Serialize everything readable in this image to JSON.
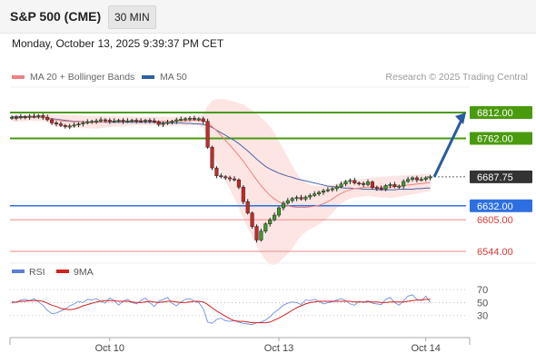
{
  "header": {
    "title": "S&P 500 (CME)",
    "interval": "30 MIN"
  },
  "datetime": "Monday, October 13, 2025 9:39:37 PM CET",
  "legend": {
    "items": [
      {
        "label": "MA 20 + Bollinger Bands",
        "color": "#f08080"
      },
      {
        "label": "MA 50",
        "color": "#2e5fa3"
      }
    ],
    "credit": "Research © 2025 Trading Central"
  },
  "chart_data": {
    "type": "candlestick",
    "price_levels": [
      {
        "value": 6812.0,
        "label": "6812.00",
        "kind": "resistance",
        "color": "#4a9a0e",
        "style": "solid"
      },
      {
        "value": 6762.0,
        "label": "6762.00",
        "kind": "resistance",
        "color": "#4a9a0e",
        "style": "solid"
      },
      {
        "value": 6687.75,
        "label": "6687.75",
        "kind": "last",
        "color": "#333333",
        "style": "dotted"
      },
      {
        "value": 6632.0,
        "label": "6632.00",
        "kind": "support",
        "color": "#2d6fe0",
        "style": "solid"
      },
      {
        "value": 6605.0,
        "label": "6605.00",
        "kind": "support",
        "color": "#dd3b3b",
        "style": "thin"
      },
      {
        "value": 6544.0,
        "label": "6544.00",
        "kind": "support",
        "color": "#dd3b3b",
        "style": "thin"
      }
    ],
    "ylim": [
      6530,
      6840
    ],
    "x_ticks": [
      {
        "label": "Oct 10",
        "bar": 22
      },
      {
        "label": "Oct 13",
        "bar": 60
      },
      {
        "label": "Oct 14",
        "bar": 93
      }
    ],
    "closes": [
      6803,
      6802,
      6804,
      6803,
      6805,
      6804,
      6806,
      6803,
      6798,
      6792,
      6790,
      6787,
      6785,
      6786,
      6788,
      6790,
      6792,
      6794,
      6795,
      6796,
      6798,
      6797,
      6795,
      6796,
      6797,
      6795,
      6796,
      6797,
      6796,
      6795,
      6797,
      6796,
      6794,
      6789,
      6791,
      6793,
      6795,
      6798,
      6799,
      6800,
      6801,
      6799,
      6800,
      6795,
      6745,
      6705,
      6690,
      6688,
      6686,
      6684,
      6682,
      6668,
      6640,
      6618,
      6592,
      6566,
      6583,
      6597,
      6605,
      6614,
      6628,
      6637,
      6642,
      6646,
      6648,
      6645,
      6649,
      6652,
      6655,
      6658,
      6661,
      6663,
      6665,
      6669,
      6674,
      6679,
      6681,
      6676,
      6675,
      6673,
      6678,
      6667,
      6666,
      6664,
      6671,
      6673,
      6669,
      6670,
      6679,
      6683,
      6686,
      6682,
      6683,
      6686,
      6687.75
    ],
    "ma20": [
      6801,
      6801,
      6802,
      6802,
      6803,
      6803,
      6803,
      6802,
      6801,
      6799,
      6798,
      6797,
      6795,
      6795,
      6794,
      6794,
      6794,
      6793,
      6793,
      6793,
      6793,
      6794,
      6794,
      6795,
      6795,
      6795,
      6795,
      6796,
      6796,
      6796,
      6796,
      6796,
      6796,
      6795,
      6795,
      6795,
      6795,
      6796,
      6796,
      6796,
      6797,
      6797,
      6797,
      6796,
      6792,
      6785,
      6777,
      6768,
      6758,
      6749,
      6739,
      6729,
      6718,
      6706,
      6694,
      6682,
      6671,
      6661,
      6652,
      6645,
      6640,
      6636,
      6632,
      6630,
      6629,
      6629,
      6629,
      6630,
      6631,
      6633,
      6636,
      6640,
      6645,
      6651,
      6656,
      6660,
      6663,
      6665,
      6666,
      6667,
      6668,
      6668,
      6668,
      6668,
      6668,
      6668,
      6669,
      6670,
      6671,
      6672,
      6673,
      6674,
      6675,
      6676,
      6677
    ],
    "ma50": [
      6804,
      6804,
      6804,
      6804,
      6803,
      6803,
      6803,
      6802,
      6801,
      6800,
      6799,
      6798,
      6797,
      6796,
      6795,
      6795,
      6794,
      6794,
      6794,
      6794,
      6794,
      6793,
      6793,
      6793,
      6793,
      6793,
      6793,
      6793,
      6793,
      6793,
      6793,
      6793,
      6793,
      6792,
      6792,
      6792,
      6792,
      6792,
      6792,
      6791,
      6791,
      6790,
      6790,
      6789,
      6787,
      6783,
      6778,
      6773,
      6768,
      6763,
      6758,
      6752,
      6745,
      6738,
      6730,
      6722,
      6715,
      6708,
      6703,
      6699,
      6695,
      6692,
      6689,
      6687,
      6684,
      6682,
      6680,
      6678,
      6676,
      6674,
      6672,
      6670,
      6669,
      6668,
      6667,
      6666,
      6666,
      6665,
      6665,
      6664,
      6664,
      6664,
      6663,
      6663,
      6663,
      6663,
      6663,
      6664,
      6664,
      6664,
      6664,
      6665,
      6665,
      6666,
      6666
    ],
    "bb_upper": [
      6808,
      6808,
      6808,
      6808,
      6809,
      6809,
      6809,
      6809,
      6809,
      6809,
      6808,
      6808,
      6808,
      6807,
      6807,
      6806,
      6806,
      6805,
      6805,
      6805,
      6805,
      6805,
      6805,
      6805,
      6805,
      6805,
      6805,
      6805,
      6804,
      6804,
      6804,
      6804,
      6804,
      6804,
      6804,
      6804,
      6804,
      6804,
      6805,
      6805,
      6805,
      6805,
      6806,
      6810,
      6825,
      6835,
      6838,
      6838,
      6837,
      6835,
      6833,
      6830,
      6828,
      6822,
      6817,
      6810,
      6802,
      6795,
      6785,
      6772,
      6757,
      6742,
      6726,
      6710,
      6695,
      6683,
      6677,
      6673,
      6671,
      6670,
      6670,
      6671,
      6672,
      6674,
      6676,
      6678,
      6680,
      6682,
      6683,
      6684,
      6685,
      6686,
      6687,
      6688,
      6688,
      6689,
      6690,
      6690,
      6691,
      6691,
      6692,
      6692,
      6693,
      6693,
      6694
    ],
    "bb_lower": [
      6794,
      6794,
      6795,
      6795,
      6796,
      6796,
      6796,
      6795,
      6793,
      6789,
      6786,
      6784,
      6782,
      6782,
      6782,
      6782,
      6782,
      6782,
      6781,
      6781,
      6782,
      6783,
      6784,
      6785,
      6785,
      6785,
      6786,
      6786,
      6787,
      6787,
      6787,
      6787,
      6788,
      6786,
      6786,
      6786,
      6786,
      6787,
      6787,
      6787,
      6788,
      6788,
      6788,
      6782,
      6758,
      6735,
      6715,
      6698,
      6680,
      6663,
      6646,
      6628,
      6608,
      6590,
      6572,
      6554,
      6540,
      6527,
      6519,
      6518,
      6523,
      6531,
      6539,
      6550,
      6563,
      6575,
      6581,
      6587,
      6591,
      6596,
      6602,
      6609,
      6618,
      6628,
      6636,
      6642,
      6646,
      6648,
      6649,
      6650,
      6651,
      6650,
      6649,
      6648,
      6648,
      6647,
      6648,
      6650,
      6651,
      6653,
      6654,
      6656,
      6657,
      6659,
      6660
    ],
    "forecast_arrow": {
      "from": 6687.75,
      "to": 6812.0
    },
    "rsi": {
      "label": "RSI",
      "ma_label": "9MA",
      "ticks": [
        70,
        50,
        30
      ],
      "ylim": [
        10,
        80
      ],
      "values": [
        52,
        50,
        54,
        55,
        53,
        56,
        51,
        46,
        38,
        33,
        34,
        37,
        40,
        45,
        48,
        52,
        50,
        55,
        54,
        56,
        52,
        49,
        57,
        53,
        46,
        52,
        55,
        50,
        48,
        53,
        57,
        50,
        44,
        52,
        55,
        58,
        49,
        45,
        51,
        55,
        56,
        52,
        50,
        41,
        20,
        18,
        24,
        26,
        22,
        21,
        22,
        20,
        18,
        17,
        16,
        19,
        20,
        23,
        28,
        35,
        40,
        46,
        49,
        51,
        50,
        47,
        54,
        53,
        55,
        52,
        48,
        50,
        51,
        54,
        56,
        53,
        48,
        46,
        52,
        50,
        53,
        49,
        48,
        47,
        55,
        58,
        50,
        46,
        53,
        60,
        62,
        55,
        53,
        60,
        50
      ],
      "ma": [
        50,
        51,
        52,
        52,
        53,
        53,
        53,
        52,
        49,
        46,
        44,
        41,
        40,
        39,
        40,
        42,
        45,
        47,
        49,
        51,
        52,
        53,
        53,
        53,
        52,
        52,
        52,
        51,
        50,
        50,
        51,
        52,
        51,
        50,
        51,
        52,
        52,
        51,
        50,
        50,
        51,
        52,
        52,
        51,
        47,
        42,
        37,
        33,
        29,
        25,
        22,
        21,
        21,
        20,
        19,
        19,
        19,
        19,
        20,
        23,
        26,
        30,
        34,
        38,
        42,
        45,
        48,
        50,
        51,
        52,
        52,
        52,
        52,
        52,
        52,
        52,
        52,
        51,
        51,
        51,
        51,
        51,
        51,
        50,
        50,
        51,
        51,
        51,
        51,
        52,
        53,
        54,
        54,
        55,
        55
      ]
    }
  }
}
